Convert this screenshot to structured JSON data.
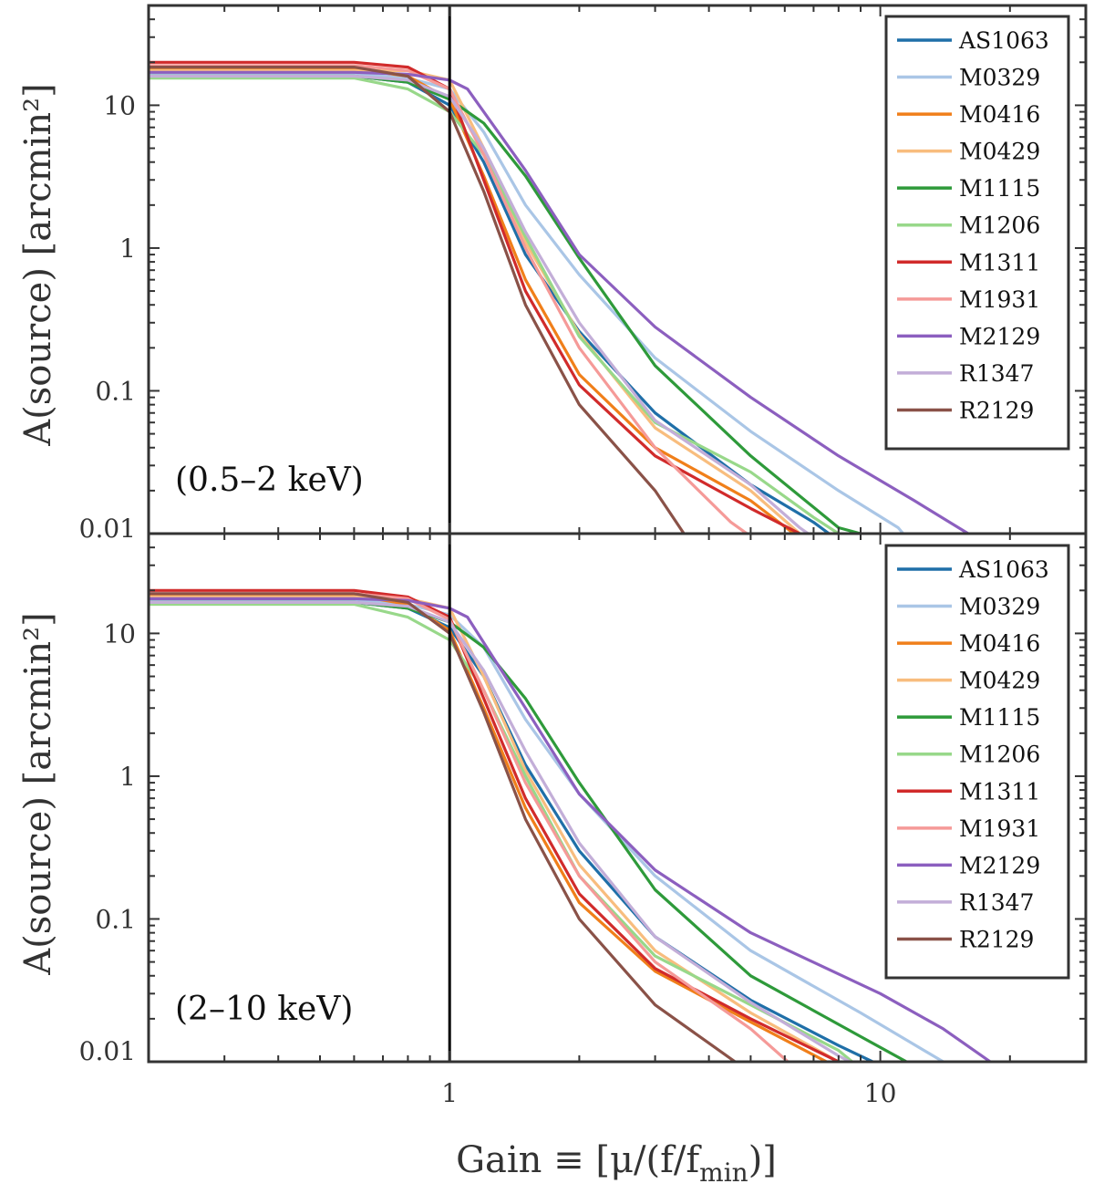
{
  "figure": {
    "ylabel": "A(source) [arcmin²]",
    "xlabel": "Gain ≡ [μ/(f/f",
    "xlabel_sub": "min",
    "xlabel_tail": ")]"
  },
  "chart_data": [
    {
      "type": "line",
      "annotation": "(0.5–2 keV)",
      "xscale": "log",
      "yscale": "log",
      "xlim": [
        0.2,
        30
      ],
      "ylim": [
        0.01,
        50
      ],
      "x_ticks": [
        1,
        10
      ],
      "x_tick_labels": [
        "1",
        "10"
      ],
      "y_ticks": [
        0.01,
        0.1,
        1,
        10
      ],
      "y_tick_labels": [
        "0.01",
        "0.1",
        "1",
        "10"
      ],
      "vertical_line_x": 1,
      "legend_position": "top-right",
      "series": [
        {
          "name": "AS1063",
          "color": "#1f6fa8",
          "points": [
            [
              0.2,
              16
            ],
            [
              0.6,
              16
            ],
            [
              0.8,
              14.5
            ],
            [
              1,
              10
            ],
            [
              1.2,
              4
            ],
            [
              1.5,
              0.9
            ],
            [
              2,
              0.26
            ],
            [
              3,
              0.07
            ],
            [
              5,
              0.022
            ],
            [
              7,
              0.012
            ],
            [
              7.6,
              0.01
            ]
          ]
        },
        {
          "name": "M0329",
          "color": "#aac6e6",
          "points": [
            [
              0.2,
              16.5
            ],
            [
              0.6,
              16.5
            ],
            [
              0.8,
              15.5
            ],
            [
              1,
              13
            ],
            [
              1.2,
              6.5
            ],
            [
              1.5,
              2
            ],
            [
              2,
              0.65
            ],
            [
              3,
              0.17
            ],
            [
              5,
              0.052
            ],
            [
              8,
              0.02
            ],
            [
              11,
              0.011
            ],
            [
              11.3,
              0.01
            ]
          ]
        },
        {
          "name": "M0416",
          "color": "#f07f1a",
          "points": [
            [
              0.2,
              18
            ],
            [
              0.6,
              18
            ],
            [
              0.8,
              16
            ],
            [
              1,
              11
            ],
            [
              1.2,
              3.2
            ],
            [
              1.5,
              0.6
            ],
            [
              2,
              0.13
            ],
            [
              3,
              0.04
            ],
            [
              5,
              0.017
            ],
            [
              6.3,
              0.01
            ]
          ]
        },
        {
          "name": "M0429",
          "color": "#f8bd7e",
          "points": [
            [
              0.2,
              17.5
            ],
            [
              0.6,
              17.5
            ],
            [
              0.8,
              17.5
            ],
            [
              1,
              15
            ],
            [
              1.2,
              5
            ],
            [
              1.5,
              1.1
            ],
            [
              2,
              0.25
            ],
            [
              3,
              0.055
            ],
            [
              5,
              0.02
            ],
            [
              6.5,
              0.01
            ]
          ]
        },
        {
          "name": "M1115",
          "color": "#2e9a3a",
          "points": [
            [
              0.2,
              16
            ],
            [
              0.6,
              16
            ],
            [
              0.8,
              14.5
            ],
            [
              1,
              11
            ],
            [
              1.2,
              7.5
            ],
            [
              1.5,
              3.2
            ],
            [
              2,
              0.85
            ],
            [
              3,
              0.15
            ],
            [
              5,
              0.035
            ],
            [
              8,
              0.011
            ],
            [
              9,
              0.01
            ]
          ]
        },
        {
          "name": "M1206",
          "color": "#98d88a",
          "points": [
            [
              0.2,
              15.5
            ],
            [
              0.6,
              15.5
            ],
            [
              0.8,
              13
            ],
            [
              1,
              9
            ],
            [
              1.2,
              4.5
            ],
            [
              1.5,
              1.2
            ],
            [
              2,
              0.24
            ],
            [
              3,
              0.06
            ],
            [
              5,
              0.027
            ],
            [
              7,
              0.013
            ],
            [
              8,
              0.01
            ]
          ]
        },
        {
          "name": "M1311",
          "color": "#d12b2b",
          "points": [
            [
              0.2,
              20
            ],
            [
              0.6,
              20
            ],
            [
              0.8,
              18.5
            ],
            [
              1,
              13
            ],
            [
              1.2,
              3
            ],
            [
              1.5,
              0.5
            ],
            [
              2,
              0.11
            ],
            [
              3,
              0.035
            ],
            [
              5,
              0.015
            ],
            [
              6.5,
              0.01
            ]
          ]
        },
        {
          "name": "M1931",
          "color": "#f59a98",
          "points": [
            [
              0.2,
              19
            ],
            [
              0.6,
              19
            ],
            [
              0.8,
              17.5
            ],
            [
              1,
              13
            ],
            [
              1.2,
              4.5
            ],
            [
              1.5,
              1
            ],
            [
              2,
              0.2
            ],
            [
              3,
              0.04
            ],
            [
              4.5,
              0.012
            ],
            [
              4.9,
              0.01
            ]
          ]
        },
        {
          "name": "M2129",
          "color": "#8c5fbf",
          "points": [
            [
              0.2,
              17
            ],
            [
              0.6,
              17
            ],
            [
              0.8,
              16.5
            ],
            [
              1,
              15
            ],
            [
              1.1,
              13
            ],
            [
              1.5,
              3.5
            ],
            [
              2,
              0.9
            ],
            [
              3,
              0.28
            ],
            [
              5,
              0.09
            ],
            [
              8,
              0.035
            ],
            [
              12,
              0.017
            ],
            [
              16,
              0.01
            ]
          ]
        },
        {
          "name": "R1347",
          "color": "#c3aed8",
          "points": [
            [
              0.2,
              16
            ],
            [
              0.6,
              16
            ],
            [
              0.8,
              15
            ],
            [
              1,
              11.5
            ],
            [
              1.2,
              5
            ],
            [
              1.5,
              1.3
            ],
            [
              2,
              0.3
            ],
            [
              3,
              0.062
            ],
            [
              5,
              0.022
            ],
            [
              6.5,
              0.011
            ],
            [
              6.8,
              0.01
            ]
          ]
        },
        {
          "name": "R2129",
          "color": "#8a5248",
          "points": [
            [
              0.2,
              18.5
            ],
            [
              0.6,
              18.5
            ],
            [
              0.8,
              16
            ],
            [
              1,
              9
            ],
            [
              1.2,
              2.5
            ],
            [
              1.5,
              0.4
            ],
            [
              2,
              0.08
            ],
            [
              3,
              0.02
            ],
            [
              3.5,
              0.01
            ]
          ]
        }
      ]
    },
    {
      "type": "line",
      "annotation": "(2–10 keV)",
      "xscale": "log",
      "yscale": "log",
      "xlim": [
        0.2,
        30
      ],
      "ylim": [
        0.01,
        50
      ],
      "x_ticks": [
        1,
        10
      ],
      "x_tick_labels": [
        "1",
        "10"
      ],
      "y_ticks": [
        0.01,
        0.1,
        1,
        10
      ],
      "y_tick_labels": [
        "0.01",
        "0.1",
        "1",
        "10"
      ],
      "vertical_line_x": 1,
      "legend_position": "top-right",
      "series": [
        {
          "name": "AS1063",
          "color": "#1f6fa8",
          "points": [
            [
              0.2,
              16.5
            ],
            [
              0.6,
              16.5
            ],
            [
              0.8,
              15
            ],
            [
              1,
              11
            ],
            [
              1.2,
              5
            ],
            [
              1.5,
              1.2
            ],
            [
              2,
              0.3
            ],
            [
              3,
              0.075
            ],
            [
              5,
              0.027
            ],
            [
              8,
              0.013
            ],
            [
              9.6,
              0.01
            ]
          ]
        },
        {
          "name": "M0329",
          "color": "#aac6e6",
          "points": [
            [
              0.2,
              17
            ],
            [
              0.6,
              17
            ],
            [
              0.8,
              16
            ],
            [
              1,
              13.5
            ],
            [
              1.2,
              8
            ],
            [
              1.5,
              2.5
            ],
            [
              2,
              0.75
            ],
            [
              3,
              0.2
            ],
            [
              5,
              0.06
            ],
            [
              9,
              0.022
            ],
            [
              14,
              0.01
            ]
          ]
        },
        {
          "name": "M0416",
          "color": "#f07f1a",
          "points": [
            [
              0.2,
              18.5
            ],
            [
              0.6,
              18.5
            ],
            [
              0.8,
              16
            ],
            [
              1,
              10.5
            ],
            [
              1.2,
              3
            ],
            [
              1.5,
              0.6
            ],
            [
              2,
              0.13
            ],
            [
              3,
              0.043
            ],
            [
              5,
              0.019
            ],
            [
              7.5,
              0.01
            ]
          ]
        },
        {
          "name": "M0429",
          "color": "#f8bd7e",
          "points": [
            [
              0.2,
              18
            ],
            [
              0.6,
              18
            ],
            [
              0.8,
              17.5
            ],
            [
              1,
              15
            ],
            [
              1.2,
              5
            ],
            [
              1.5,
              1.1
            ],
            [
              2,
              0.24
            ],
            [
              3,
              0.06
            ],
            [
              5,
              0.022
            ],
            [
              8,
              0.01
            ]
          ]
        },
        {
          "name": "M1115",
          "color": "#2e9a3a",
          "points": [
            [
              0.2,
              16.5
            ],
            [
              0.6,
              16.5
            ],
            [
              0.8,
              15
            ],
            [
              1,
              12
            ],
            [
              1.2,
              8
            ],
            [
              1.5,
              3.5
            ],
            [
              2,
              0.9
            ],
            [
              3,
              0.16
            ],
            [
              5,
              0.04
            ],
            [
              9,
              0.015
            ],
            [
              11.5,
              0.01
            ]
          ]
        },
        {
          "name": "M1206",
          "color": "#98d88a",
          "points": [
            [
              0.2,
              16
            ],
            [
              0.6,
              16
            ],
            [
              0.8,
              13
            ],
            [
              1,
              9
            ],
            [
              1.2,
              4
            ],
            [
              1.5,
              1
            ],
            [
              2,
              0.2
            ],
            [
              3,
              0.055
            ],
            [
              5,
              0.025
            ],
            [
              8,
              0.012
            ],
            [
              8.6,
              0.01
            ]
          ]
        },
        {
          "name": "M1311",
          "color": "#d12b2b",
          "points": [
            [
              0.2,
              20
            ],
            [
              0.6,
              20
            ],
            [
              0.8,
              18
            ],
            [
              1,
              13
            ],
            [
              1.2,
              3.5
            ],
            [
              1.5,
              0.7
            ],
            [
              2,
              0.15
            ],
            [
              3,
              0.045
            ],
            [
              5,
              0.02
            ],
            [
              7.5,
              0.011
            ],
            [
              8,
              0.01
            ]
          ]
        },
        {
          "name": "M1931",
          "color": "#f59a98",
          "points": [
            [
              0.2,
              19
            ],
            [
              0.6,
              19
            ],
            [
              0.8,
              17.5
            ],
            [
              1,
              12.5
            ],
            [
              1.2,
              4
            ],
            [
              1.5,
              0.9
            ],
            [
              2,
              0.2
            ],
            [
              3,
              0.05
            ],
            [
              5,
              0.017
            ],
            [
              6.1,
              0.01
            ]
          ]
        },
        {
          "name": "M2129",
          "color": "#8c5fbf",
          "points": [
            [
              0.2,
              17.5
            ],
            [
              0.6,
              17.5
            ],
            [
              0.8,
              17
            ],
            [
              1,
              15
            ],
            [
              1.1,
              13
            ],
            [
              1.5,
              3
            ],
            [
              2,
              0.75
            ],
            [
              3,
              0.22
            ],
            [
              5,
              0.08
            ],
            [
              10,
              0.03
            ],
            [
              14,
              0.017
            ],
            [
              18,
              0.01
            ]
          ]
        },
        {
          "name": "R1347",
          "color": "#c3aed8",
          "points": [
            [
              0.2,
              16.5
            ],
            [
              0.6,
              16.5
            ],
            [
              0.8,
              15.5
            ],
            [
              1,
              12
            ],
            [
              1.2,
              5.5
            ],
            [
              1.5,
              1.5
            ],
            [
              2,
              0.34
            ],
            [
              3,
              0.075
            ],
            [
              5,
              0.026
            ],
            [
              8,
              0.011
            ],
            [
              8.5,
              0.01
            ]
          ]
        },
        {
          "name": "R2129",
          "color": "#8a5248",
          "points": [
            [
              0.2,
              19
            ],
            [
              0.6,
              19
            ],
            [
              0.8,
              16.5
            ],
            [
              1,
              10
            ],
            [
              1.2,
              2.8
            ],
            [
              1.5,
              0.5
            ],
            [
              2,
              0.1
            ],
            [
              3,
              0.025
            ],
            [
              4.6,
              0.01
            ]
          ]
        }
      ]
    }
  ]
}
